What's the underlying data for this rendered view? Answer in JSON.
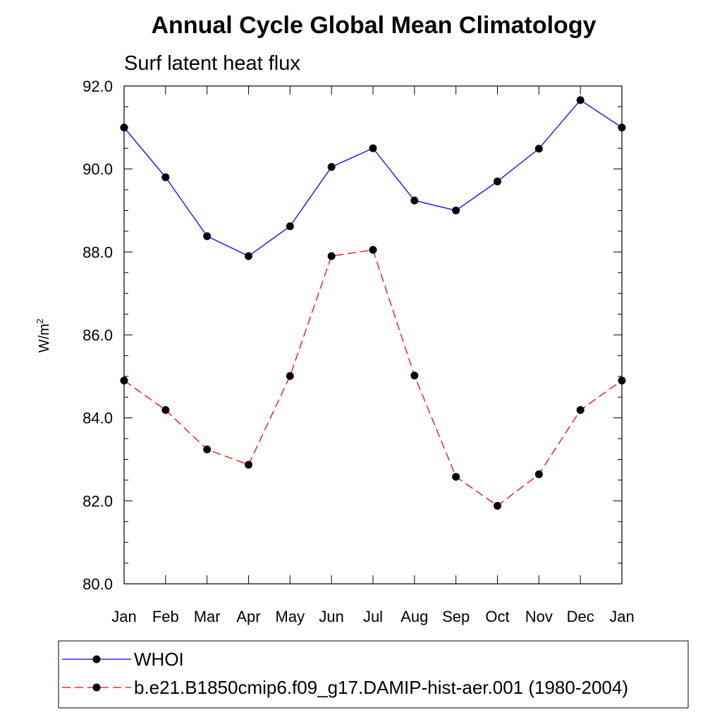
{
  "chart_data": {
    "type": "line",
    "title": "Annual Cycle Global Mean Climatology",
    "subtitle": "Surf latent heat flux",
    "ylabel": "W/m",
    "ylabel_superscript": "2",
    "ylim": [
      80.0,
      92.0
    ],
    "y_ticks": [
      "80.0",
      "82.0",
      "84.0",
      "86.0",
      "88.0",
      "90.0",
      "92.0"
    ],
    "categories": [
      "Jan",
      "Feb",
      "Mar",
      "Apr",
      "May",
      "Jun",
      "Jul",
      "Aug",
      "Sep",
      "Oct",
      "Nov",
      "Dec",
      "Jan"
    ],
    "series": [
      {
        "name": "WHOI",
        "color": "#0000ff",
        "dash": "solid",
        "marker": "filled-circle",
        "values": [
          91.0,
          89.8,
          88.38,
          87.9,
          88.62,
          90.05,
          90.5,
          89.24,
          89.0,
          89.7,
          90.49,
          91.66,
          91.0
        ]
      },
      {
        "name": "b.e21.B1850cmip6.f09_g17.DAMIP-hist-aer.001 (1980-2004)",
        "color": "#ff0000",
        "dash": "dashed",
        "marker": "filled-circle",
        "values": [
          84.9,
          84.19,
          83.24,
          82.87,
          85.01,
          87.9,
          88.05,
          85.02,
          82.58,
          81.88,
          82.64,
          84.19,
          84.9
        ]
      }
    ],
    "grid": false,
    "legend_position": "bottom"
  }
}
